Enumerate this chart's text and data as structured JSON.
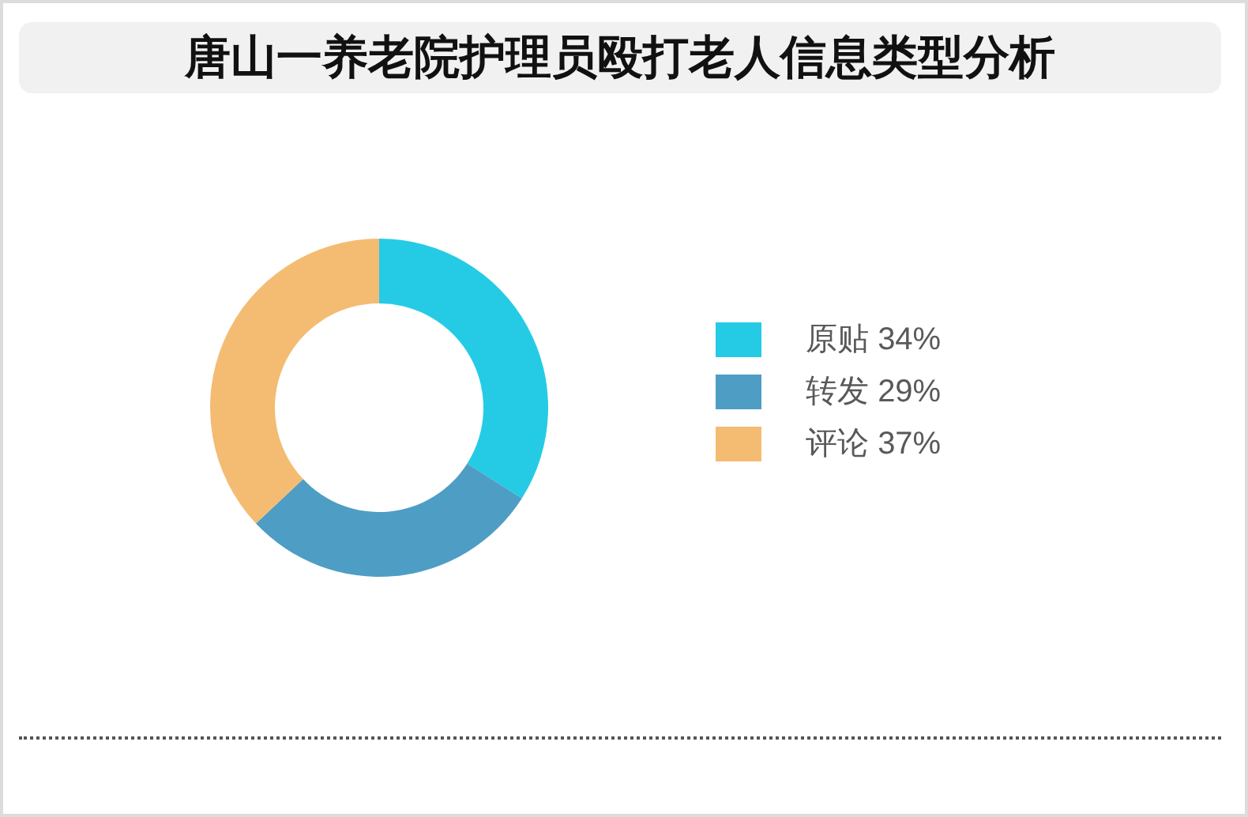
{
  "chart_data": {
    "type": "donut",
    "title": "唐山一养老院护理员殴打老人信息类型分析",
    "categories": [
      "原贴",
      "转发",
      "评论"
    ],
    "values": [
      34,
      29,
      37
    ],
    "colors": [
      "#25cbe5",
      "#4e9dc5",
      "#f4bc72"
    ],
    "value_labels": [
      "34%",
      "29%",
      "37%"
    ],
    "legend": "right"
  }
}
